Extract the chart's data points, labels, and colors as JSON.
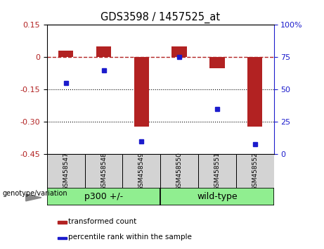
{
  "title": "GDS3598 / 1457525_at",
  "samples": [
    "GSM458547",
    "GSM458548",
    "GSM458549",
    "GSM458550",
    "GSM458551",
    "GSM458552"
  ],
  "transformed_count": [
    0.03,
    0.05,
    -0.32,
    0.05,
    -0.05,
    -0.32
  ],
  "percentile_rank": [
    55,
    65,
    10,
    75,
    35,
    8
  ],
  "ylim_left": [
    -0.45,
    0.15
  ],
  "ylim_right": [
    0,
    100
  ],
  "yticks_left": [
    0.15,
    0.0,
    -0.15,
    -0.3,
    -0.45
  ],
  "ytick_labels_left": [
    "0.15",
    "0",
    "-0.15",
    "-0.30",
    "-0.45"
  ],
  "yticks_right": [
    100,
    75,
    50,
    25,
    0
  ],
  "ytick_labels_right": [
    "100%",
    "75",
    "50",
    "25",
    "0"
  ],
  "dotted_lines": [
    -0.15,
    -0.3
  ],
  "bar_color": "#b22222",
  "dot_color": "#1c1ccc",
  "bar_width": 0.4,
  "group1_label": "p300 +/-",
  "group2_label": "wild-type",
  "group_label_prefix": "genotype/variation",
  "group_bg_color": "#90ee90",
  "sample_bg_color": "#d3d3d3",
  "legend_red_label": "transformed count",
  "legend_blue_label": "percentile rank within the sample",
  "right_axis_color": "#1c1ccc",
  "left_axis_color": "#b22222"
}
